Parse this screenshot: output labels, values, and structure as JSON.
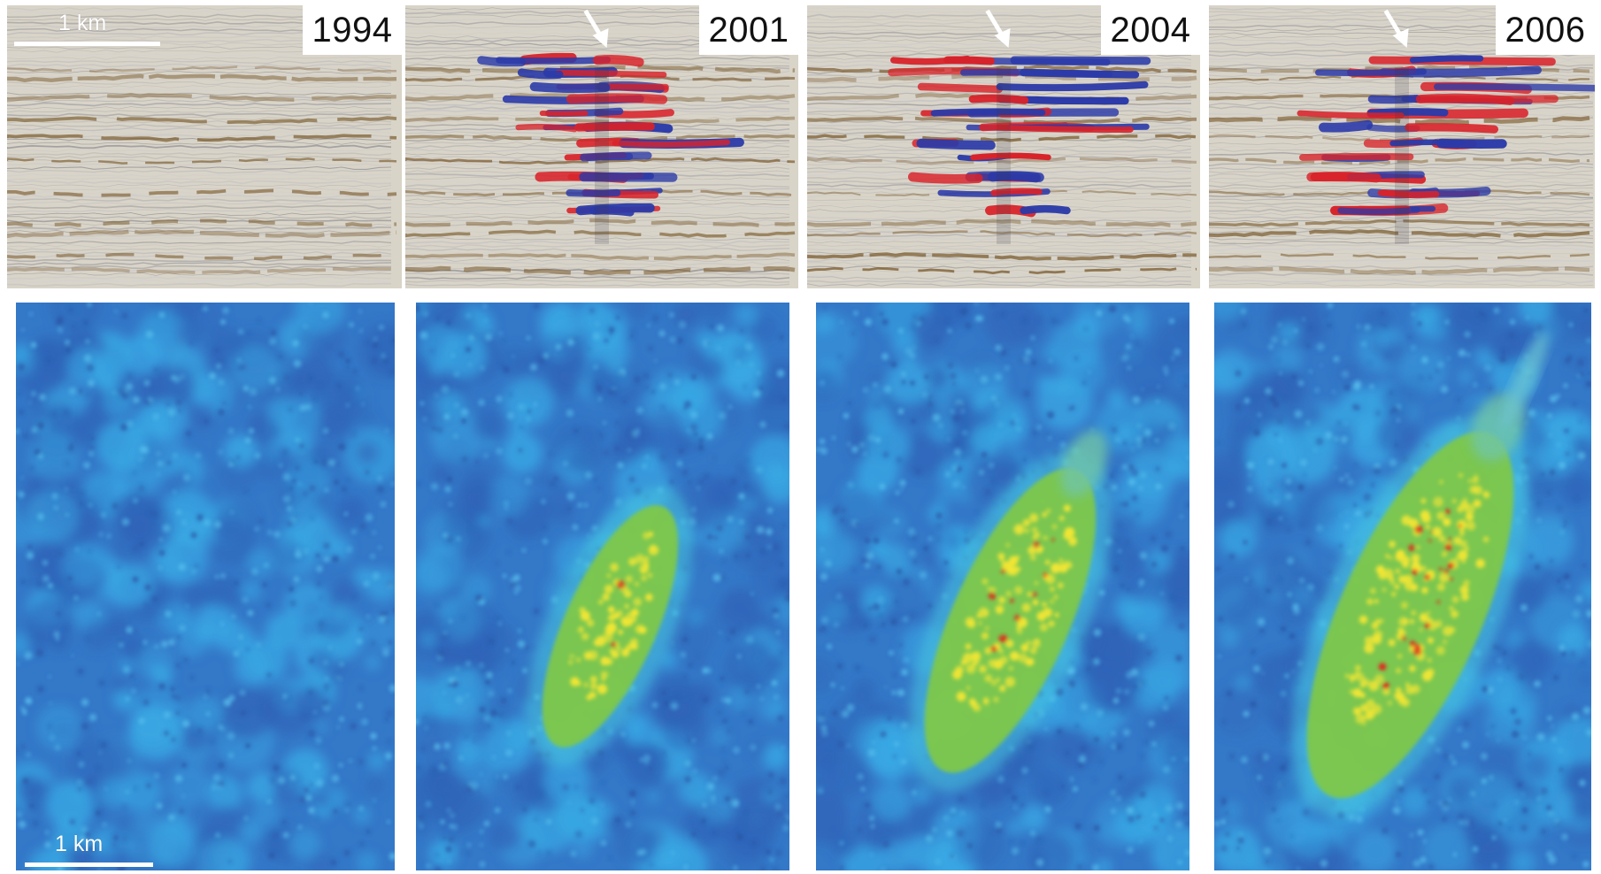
{
  "figure": {
    "panels": [
      {
        "year": "1994",
        "arrow": false,
        "plume": 0
      },
      {
        "year": "2001",
        "arrow": true,
        "plume": 1
      },
      {
        "year": "2004",
        "arrow": true,
        "plume": 2
      },
      {
        "year": "2006",
        "arrow": true,
        "plume": 3
      }
    ],
    "scale_top": "1 km",
    "scale_bottom": "1 km",
    "colors": {
      "seismic_bg": "#d9d4c8",
      "seismic_brown": "#7a5a2c",
      "seismic_red": "#d8232a",
      "seismic_blue": "#2b3aa8",
      "map_dark": "#2f64b8",
      "map_light": "#39a9e4",
      "plume_green": "#7ec84a",
      "plume_yellow": "#f2e634",
      "plume_red": "#e2231a"
    }
  }
}
